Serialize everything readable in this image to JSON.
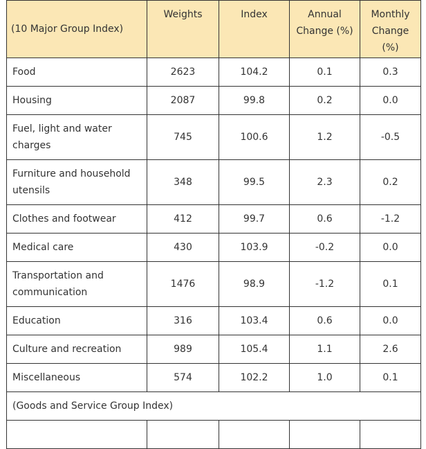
{
  "table": {
    "header": {
      "group": "(10 Major Group Index)",
      "weights": "Weights",
      "index": "Index",
      "annual_line1": "Annual",
      "annual_line2": "Change (%)",
      "monthly_line1": "Monthly",
      "monthly_line2": "Change",
      "monthly_line3": "(%)"
    },
    "rows": [
      {
        "line1": "Food",
        "line2": "",
        "weights": "2623",
        "index": "104.2",
        "annual": "0.1",
        "monthly": "0.3"
      },
      {
        "line1": "Housing",
        "line2": "",
        "weights": "2087",
        "index": "99.8",
        "annual": "0.2",
        "monthly": "0.0"
      },
      {
        "line1": "Fuel, light and water",
        "line2": "charges",
        "weights": "745",
        "index": "100.6",
        "annual": "1.2",
        "monthly": "-0.5"
      },
      {
        "line1": "Furniture and household",
        "line2": "utensils",
        "weights": "348",
        "index": "99.5",
        "annual": "2.3",
        "monthly": "0.2"
      },
      {
        "line1": "Clothes and footwear",
        "line2": "",
        "weights": "412",
        "index": "99.7",
        "annual": "0.6",
        "monthly": "-1.2"
      },
      {
        "line1": "Medical care",
        "line2": "",
        "weights": "430",
        "index": "103.9",
        "annual": "-0.2",
        "monthly": "0.0"
      },
      {
        "line1": "Transportation and",
        "line2": "communication",
        "weights": "1476",
        "index": "98.9",
        "annual": "-1.2",
        "monthly": "0.1"
      },
      {
        "line1": "Education",
        "line2": "",
        "weights": "316",
        "index": "103.4",
        "annual": "0.6",
        "monthly": "0.0"
      },
      {
        "line1": "Culture and recreation",
        "line2": "",
        "weights": "989",
        "index": "105.4",
        "annual": "1.1",
        "monthly": "2.6"
      },
      {
        "line1": "Miscellaneous",
        "line2": "",
        "weights": "574",
        "index": "102.2",
        "annual": "1.0",
        "monthly": "0.1"
      }
    ],
    "section_label": "(Goods and Service Group Index)"
  }
}
